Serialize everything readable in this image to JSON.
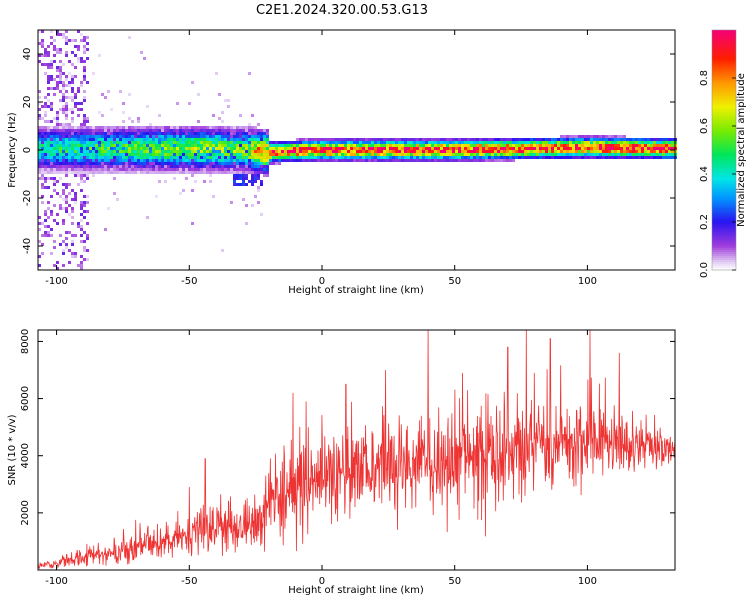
{
  "title": "C2E1.2024.320.00.53.G13",
  "chart_data": [
    {
      "type": "heatmap",
      "xlabel": "Height of straight line (km)",
      "ylabel": "Frequency (Hz)",
      "xlim": [
        -107,
        133
      ],
      "ylim": [
        -50,
        50
      ],
      "xticks": [
        -100,
        -50,
        0,
        50,
        100
      ],
      "yticks": [
        -40,
        -20,
        0,
        20,
        40
      ],
      "colorbar": {
        "label": "Normalized spectral amplitude",
        "range": [
          0,
          1
        ],
        "ticks": [
          "0.0",
          "0.2",
          "0.4",
          "0.6",
          "0.8"
        ],
        "tick_values": [
          0,
          0.2,
          0.4,
          0.6,
          0.8
        ],
        "colormap": "rainbow (white-violet-blue-cyan-green-yellow-red-magenta)"
      },
      "ridge": [
        {
          "x": -100,
          "freq": 0.5,
          "amp": 0.45
        },
        {
          "x": -80,
          "freq": 0.5,
          "amp": 0.5
        },
        {
          "x": -60,
          "freq": 0.5,
          "amp": 0.55
        },
        {
          "x": -45,
          "freq": 0.5,
          "amp": 0.6
        },
        {
          "x": -30,
          "freq": 0.0,
          "amp": 0.55
        },
        {
          "x": -20,
          "freq": -1.0,
          "amp": 0.85
        },
        {
          "x": 0,
          "freq": 0.0,
          "amp": 0.9
        },
        {
          "x": 50,
          "freq": 0.0,
          "amp": 0.9
        },
        {
          "x": 100,
          "freq": 1.0,
          "amp": 0.9
        },
        {
          "x": 133,
          "freq": 0.5,
          "amp": 0.9
        }
      ],
      "secondary_branch": {
        "x_range": [
          -33,
          -22
        ],
        "freq_range": [
          -15,
          -10
        ]
      }
    },
    {
      "type": "line",
      "xlabel": "Height of straight line (km)",
      "ylabel": "SNR (10 * v/v)",
      "xlim": [
        -107,
        133
      ],
      "ylim": [
        0,
        8400
      ],
      "xticks": [
        -100,
        -50,
        0,
        50,
        100
      ],
      "yticks": [
        2000,
        4000,
        6000,
        8000
      ],
      "line_color": "#ee3333",
      "envelope": {
        "x": [
          -107,
          -100,
          -80,
          -60,
          -40,
          -25,
          -20,
          -10,
          0,
          20,
          40,
          60,
          80,
          100,
          120,
          133
        ],
        "mean": [
          150,
          250,
          600,
          1000,
          1500,
          1600,
          2500,
          2700,
          3200,
          3500,
          3900,
          4000,
          4300,
          4600,
          4300,
          4200
        ],
        "spread": [
          150,
          250,
          450,
          700,
          1000,
          900,
          1400,
          1500,
          1600,
          1700,
          1700,
          1800,
          1800,
          1600,
          900,
          500
        ]
      },
      "peaks": [
        {
          "x": 40,
          "y": 8400
        },
        {
          "x": 77,
          "y": 8400
        },
        {
          "x": 101,
          "y": 8400
        },
        {
          "x": 86,
          "y": 8100
        },
        {
          "x": 70,
          "y": 7800
        },
        {
          "x": 112,
          "y": 7600
        },
        {
          "x": 24,
          "y": 7000
        },
        {
          "x": 53,
          "y": 6900
        },
        {
          "x": 80,
          "y": 6900
        },
        {
          "x": 9,
          "y": 6500
        },
        {
          "x": -11,
          "y": 6200
        },
        {
          "x": -6,
          "y": 5900
        },
        {
          "x": -44,
          "y": 3900
        },
        {
          "x": -50,
          "y": 2900
        }
      ]
    }
  ]
}
